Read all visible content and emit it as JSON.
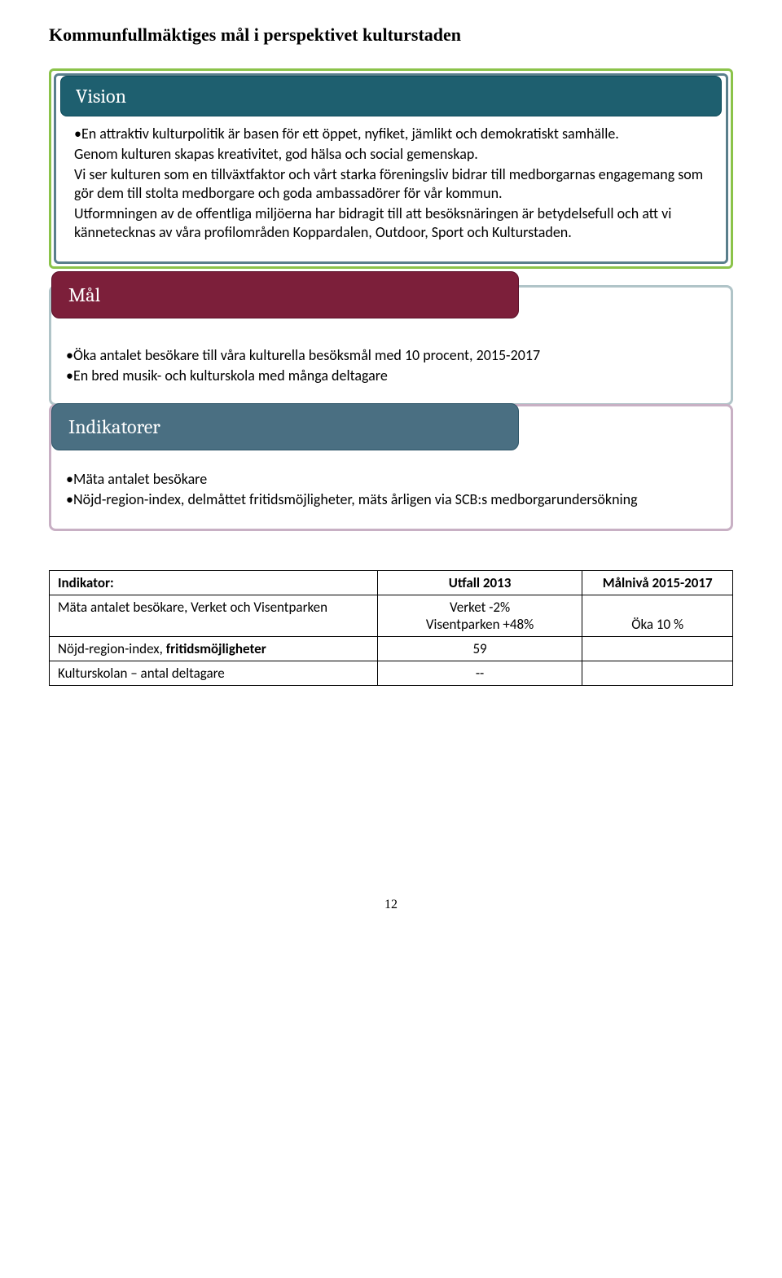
{
  "header": {
    "title": "Kommunfullmäktiges mål i perspektivet kulturstaden"
  },
  "vision": {
    "tab": "Vision",
    "paragraphs": [
      "•En attraktiv kulturpolitik är basen för ett öppet, nyfiket, jämlikt och demokratiskt samhälle.",
      "Genom kulturen skapas kreativitet, god hälsa och social gemenskap.",
      "Vi ser kulturen som en tillväxtfaktor och vårt starka föreningsliv bidrar till medborgarnas engagemang som gör dem till stolta medborgare och goda ambassadörer för vår kommun.",
      "Utformningen av de offentliga miljöerna har bidragit till att besöksnäringen är betydelsefull och att vi kännetecknas av våra profilområden Koppardalen, Outdoor, Sport och Kulturstaden."
    ]
  },
  "mal": {
    "tab": "Mål",
    "bullets": [
      "•Öka antalet besökare till våra  kulturella besöksmål med 10 procent, 2015-2017",
      "•En bred musik- och kulturskola med många deltagare"
    ]
  },
  "indikatorer": {
    "tab": "Indikatorer",
    "bullets": [
      "•Mäta antalet besökare",
      "•Nöjd-region-index, delmåttet fritidsmöjligheter, mäts årligen via SCB:s medborgarundersökning"
    ]
  },
  "table": {
    "headers": {
      "c1": "Indikator:",
      "c2": "Utfall 2013",
      "c3": "Målnivå 2015-2017"
    },
    "rows": [
      {
        "c1": "Mäta antalet besökare, Verket och Visentparken",
        "c2_line1": "Verket -2%",
        "c2_line2": "Visentparken +48%",
        "c3": "Öka 10 %"
      },
      {
        "c1_pre": "Nöjd-region-index, ",
        "c1_bold": "fritidsmöjligheter",
        "c2": "59",
        "c3": ""
      },
      {
        "c1": "Kulturskolan – antal deltagare",
        "c2": "--",
        "c3": ""
      }
    ]
  },
  "colors": {
    "vision_tab_bg": "#1e5f6f",
    "vision_inner_border": "#5a7f8c",
    "vision_outer_border": "#8bc34a",
    "mal_tab_bg": "#7c1f3a",
    "mal_border": "#b0c4c8",
    "ind_tab_bg": "#4a6f82",
    "ind_border": "#c8b0c4"
  },
  "page_number": "12"
}
